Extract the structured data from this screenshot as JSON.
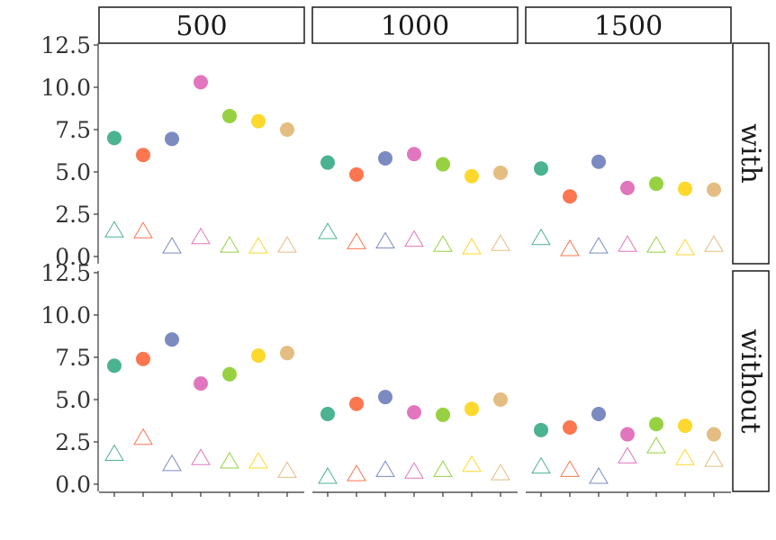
{
  "chart_data": {
    "type": "scatter",
    "title": "",
    "xlabel": "",
    "ylabel": "",
    "columns": [
      "500",
      "1000",
      "1500"
    ],
    "rows": [
      "with",
      "without"
    ],
    "y_ticks": [
      "0.0",
      "2.5",
      "5.0",
      "7.5",
      "10.0",
      "12.5"
    ],
    "ylim": [
      0,
      12.5
    ],
    "x_positions": 7,
    "x_tick_labels": [
      "",
      "",
      "",
      "",
      "",
      "",
      ""
    ],
    "grid": false,
    "legend": "none",
    "colors": [
      "#4cb391",
      "#fc7650",
      "#7b8bc2",
      "#e276be",
      "#97d141",
      "#fed82d",
      "#e3bd82"
    ],
    "series": [
      {
        "marker": "circle-filled",
        "panels": {
          "with": {
            "500": [
              7.0,
              6.0,
              6.95,
              10.3,
              8.3,
              8.0,
              7.5
            ],
            "1000": [
              5.55,
              4.85,
              5.8,
              6.05,
              5.45,
              4.75,
              4.95
            ],
            "1500": [
              5.2,
              3.55,
              5.6,
              4.05,
              4.3,
              4.0,
              3.95
            ]
          },
          "without": {
            "500": [
              7.0,
              7.4,
              8.55,
              5.95,
              6.5,
              7.6,
              7.75
            ],
            "1000": [
              4.15,
              4.75,
              5.15,
              4.25,
              4.1,
              4.45,
              5.0
            ],
            "1500": [
              3.2,
              3.35,
              4.15,
              2.95,
              3.55,
              3.45,
              2.95
            ]
          }
        }
      },
      {
        "marker": "triangle-open",
        "panels": {
          "with": {
            "500": [
              1.5,
              1.45,
              0.55,
              1.1,
              0.6,
              0.55,
              0.6
            ],
            "1000": [
              1.4,
              0.8,
              0.85,
              0.95,
              0.65,
              0.5,
              0.7
            ],
            "1500": [
              1.05,
              0.4,
              0.55,
              0.65,
              0.6,
              0.45,
              0.65
            ]
          },
          "without": {
            "500": [
              1.75,
              2.7,
              1.15,
              1.5,
              1.3,
              1.3,
              0.75
            ],
            "1000": [
              0.4,
              0.55,
              0.8,
              0.7,
              0.8,
              1.1,
              0.6
            ],
            "1500": [
              1.0,
              0.8,
              0.4,
              1.6,
              2.2,
              1.5,
              1.4
            ]
          }
        }
      }
    ]
  }
}
